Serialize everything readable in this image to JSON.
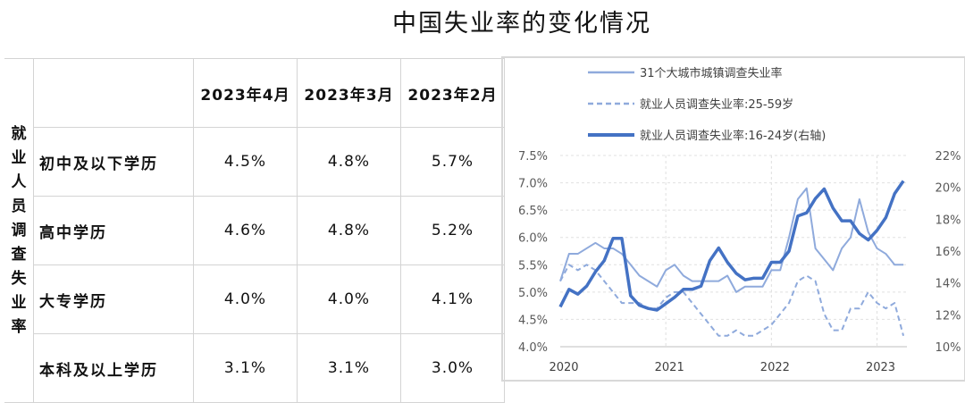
{
  "title": "中国失业率的变化情况",
  "table": {
    "side_label": "就业人员调查失业率",
    "columns": [
      "2023年4月",
      "2023年3月",
      "2023年2月"
    ],
    "rows": [
      {
        "label": "初中及以下学历",
        "values": [
          "4.5%",
          "4.8%",
          "5.7%"
        ]
      },
      {
        "label": "高中学历",
        "values": [
          "4.6%",
          "4.8%",
          "5.2%"
        ]
      },
      {
        "label": "大专学历",
        "values": [
          "4.0%",
          "4.0%",
          "4.1%"
        ]
      },
      {
        "label": "本科及以上学历",
        "values": [
          "3.1%",
          "3.1%",
          "3.0%"
        ]
      }
    ]
  },
  "chart_data": {
    "type": "line",
    "x_start": "2020-01",
    "x_end": "2023-04",
    "x_frequency": "monthly",
    "x_ticks": [
      "2020",
      "2021",
      "2022",
      "2023"
    ],
    "y_left": {
      "ylim": [
        4.0,
        7.5
      ],
      "ticks": [
        "4.0%",
        "4.5%",
        "5.0%",
        "5.5%",
        "6.0%",
        "6.5%",
        "7.0%",
        "7.5%"
      ]
    },
    "y_right": {
      "ylim": [
        10,
        22
      ],
      "ticks": [
        "10%",
        "12%",
        "14%",
        "16%",
        "18%",
        "20%",
        "22%"
      ]
    },
    "grid": true,
    "legend_position": "top",
    "series": [
      {
        "name": "31个大城市城镇调查失业率",
        "axis": "left",
        "style": "solid-thin",
        "color": "#8faadc",
        "values": [
          5.2,
          5.7,
          5.7,
          5.8,
          5.9,
          5.8,
          5.8,
          5.7,
          5.5,
          5.3,
          5.2,
          5.1,
          5.4,
          5.5,
          5.3,
          5.2,
          5.2,
          5.2,
          5.2,
          5.3,
          5.0,
          5.1,
          5.1,
          5.1,
          5.4,
          5.4,
          6.0,
          6.7,
          6.9,
          5.8,
          5.6,
          5.4,
          5.8,
          6.0,
          6.7,
          6.1,
          5.8,
          5.7,
          5.5,
          5.5
        ]
      },
      {
        "name": "就业人员调查失业率:25-59岁",
        "axis": "left",
        "style": "dashed",
        "color": "#8faadc",
        "values": [
          5.2,
          5.5,
          5.4,
          5.5,
          5.4,
          5.2,
          5.0,
          4.8,
          4.8,
          4.8,
          4.7,
          4.7,
          4.9,
          5.0,
          5.0,
          4.8,
          4.6,
          4.4,
          4.2,
          4.2,
          4.3,
          4.2,
          4.2,
          4.3,
          4.4,
          4.6,
          4.8,
          5.2,
          5.3,
          5.2,
          4.6,
          4.3,
          4.3,
          4.7,
          4.7,
          5.0,
          4.8,
          4.7,
          4.8,
          4.2
        ]
      },
      {
        "name": "就业人员调查失业率:16-24岁(右轴)",
        "axis": "right",
        "style": "solid-thick",
        "color": "#4472c4",
        "values": [
          12.5,
          13.6,
          13.3,
          13.8,
          14.7,
          15.4,
          16.8,
          16.8,
          13.2,
          12.6,
          12.4,
          12.3,
          12.7,
          13.1,
          13.6,
          13.6,
          13.8,
          15.4,
          16.2,
          15.3,
          14.6,
          14.2,
          14.3,
          14.3,
          15.3,
          15.3,
          16.0,
          18.2,
          18.4,
          19.3,
          19.9,
          18.7,
          17.9,
          17.9,
          17.1,
          16.7,
          17.3,
          18.1,
          19.6,
          20.4
        ]
      }
    ]
  }
}
